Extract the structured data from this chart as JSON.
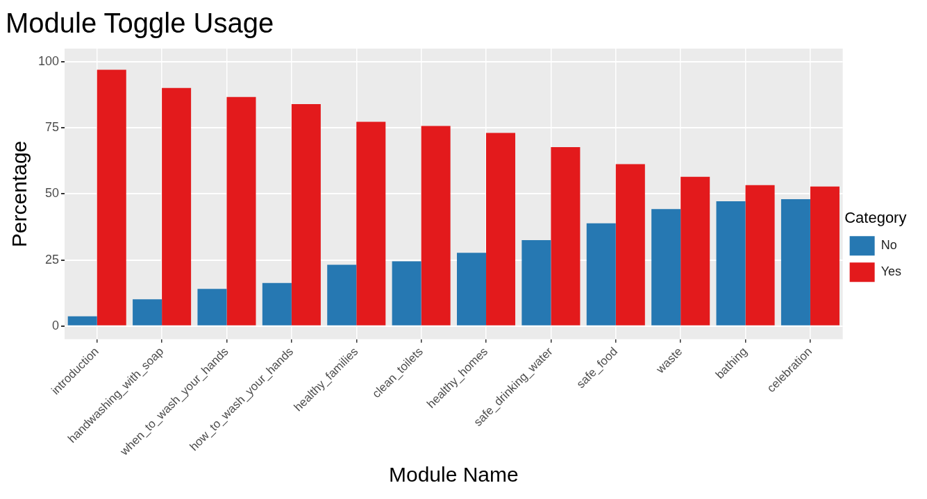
{
  "chart_data": {
    "type": "bar",
    "title": "Module Toggle Usage",
    "xlabel": "Module Name",
    "ylabel": "Percentage",
    "legend_title": "Category",
    "categories": [
      "introduction",
      "handwashing_with_soap",
      "when_to_wash_your_hands",
      "how_to_wash_your_hands",
      "healthy_families",
      "clean_toilets",
      "healthy_homes",
      "safe_drinking_water",
      "safe_food",
      "waste",
      "bathing",
      "celebration"
    ],
    "series": [
      {
        "name": "No",
        "color": "#2678b2",
        "values": [
          3.7,
          10.1,
          14.1,
          16.3,
          23.2,
          24.5,
          27.7,
          32.5,
          38.9,
          44.3,
          47.2,
          48.0
        ]
      },
      {
        "name": "Yes",
        "color": "#e31a1c",
        "values": [
          97.0,
          90.1,
          86.7,
          84.0,
          77.3,
          75.7,
          73.1,
          67.7,
          61.3,
          56.5,
          53.3,
          52.8
        ]
      }
    ],
    "ylim": [
      -5,
      105
    ],
    "yticks": [
      0,
      25,
      50,
      75,
      100
    ],
    "grid": true,
    "legend": "right"
  }
}
